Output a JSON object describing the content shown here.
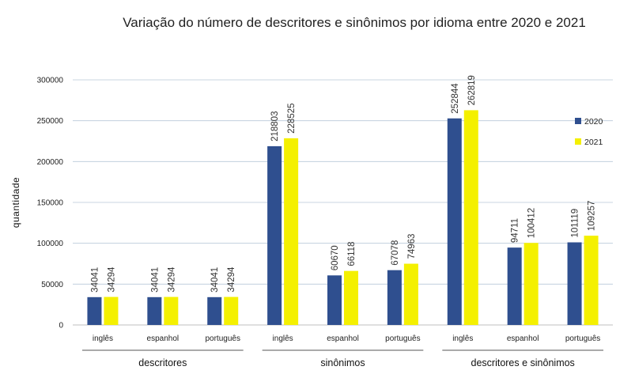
{
  "chart_data": {
    "type": "bar",
    "title": "Variação do número de descritores e sinônimos por idioma entre 2020 e 2021",
    "xlabel": "",
    "ylabel": "quantidade",
    "ylim": [
      0,
      300000
    ],
    "yticks": [
      0,
      50000,
      100000,
      150000,
      200000,
      250000,
      300000
    ],
    "grid": true,
    "legend_position": "right",
    "groups": [
      {
        "label": "descritores",
        "categories": [
          "inglês",
          "espanhol",
          "português"
        ]
      },
      {
        "label": "sinônimos",
        "categories": [
          "inglês",
          "espanhol",
          "português"
        ]
      },
      {
        "label": "descritores e sinônimos",
        "categories": [
          "inglês",
          "espanhol",
          "português"
        ]
      }
    ],
    "categories": [
      "inglês",
      "espanhol",
      "português",
      "inglês",
      "espanhol",
      "português",
      "inglês",
      "espanhol",
      "português"
    ],
    "series": [
      {
        "name": "2020",
        "color": "#2f4f8f",
        "values": [
          34041,
          34041,
          34041,
          218803,
          60670,
          67078,
          252844,
          94711,
          101119
        ]
      },
      {
        "name": "2021",
        "color": "#f4f000",
        "values": [
          34294,
          34294,
          34294,
          228525,
          66118,
          74963,
          262819,
          100412,
          109257
        ]
      }
    ]
  }
}
